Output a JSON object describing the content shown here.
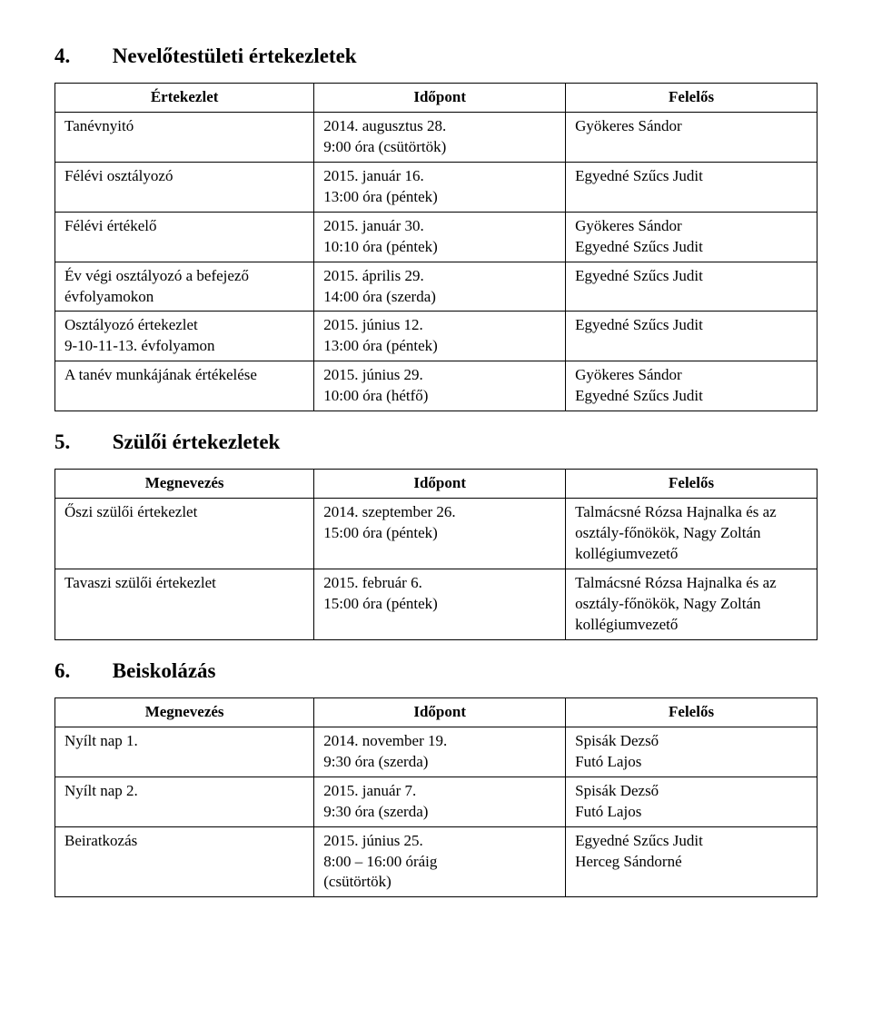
{
  "sections": {
    "s4": {
      "num": "4.",
      "title": "Nevelőtestületi értekezletek"
    },
    "s5": {
      "num": "5.",
      "title": "Szülői értekezletek"
    },
    "s6": {
      "num": "6.",
      "title": "Beiskolázás"
    }
  },
  "headers": {
    "t4": {
      "c1": "Értekezlet",
      "c2": "Időpont",
      "c3": "Felelős"
    },
    "t5": {
      "c1": "Megnevezés",
      "c2": "Időpont",
      "c3": "Felelős"
    },
    "t6": {
      "c1": "Megnevezés",
      "c2": "Időpont",
      "c3": "Felelős"
    }
  },
  "t4": [
    {
      "c1": "Tanévnyitó",
      "c2": "2014. augusztus 28.\n9:00 óra (csütörtök)",
      "c3": "Gyökeres Sándor"
    },
    {
      "c1": "Félévi osztályozó",
      "c2": "2015. január 16.\n13:00 óra (péntek)",
      "c3": "Egyedné Szűcs Judit"
    },
    {
      "c1": "Félévi értékelő",
      "c2": "2015. január 30.\n10:10 óra (péntek)",
      "c3": "Gyökeres Sándor\nEgyedné Szűcs Judit"
    },
    {
      "c1": "Év végi osztályozó a befejező évfolyamokon",
      "c2": "2015. április 29.\n14:00 óra (szerda)",
      "c3": "Egyedné Szűcs Judit"
    },
    {
      "c1": "Osztályozó értekezlet\n9-10-11-13. évfolyamon",
      "c2": "2015. június 12.\n13:00 óra (péntek)",
      "c3": "Egyedné Szűcs Judit"
    },
    {
      "c1": "A tanév munkájának értékelése",
      "c2": "2015. június 29.\n10:00 óra (hétfő)",
      "c3": "Gyökeres Sándor\nEgyedné Szűcs Judit"
    }
  ],
  "t5": [
    {
      "c1": "Őszi szülői értekezlet",
      "c2": "2014. szeptember 26.\n15:00 óra (péntek)",
      "c3": "Talmácsné Rózsa Hajnalka és az osztály-főnökök, Nagy Zoltán kollégiumvezető"
    },
    {
      "c1": "Tavaszi szülői értekezlet",
      "c2": "2015. február 6.\n15:00 óra (péntek)",
      "c3": "Talmácsné Rózsa Hajnalka és az osztály-főnökök, Nagy Zoltán kollégiumvezető"
    }
  ],
  "t6": [
    {
      "c1": "Nyílt nap 1.",
      "c2": "2014. november 19.\n9:30 óra (szerda)",
      "c3": "Spisák Dezső\nFutó Lajos"
    },
    {
      "c1": "Nyílt nap 2.",
      "c2": "2015. január 7.\n9:30 óra (szerda)",
      "c3": "Spisák Dezső\nFutó Lajos"
    },
    {
      "c1": "Beiratkozás",
      "c2": "2015. június 25.\n8:00 – 16:00 óráig\n(csütörtök)",
      "c3": "Egyedné Szűcs Judit\nHerceg Sándorné"
    }
  ]
}
